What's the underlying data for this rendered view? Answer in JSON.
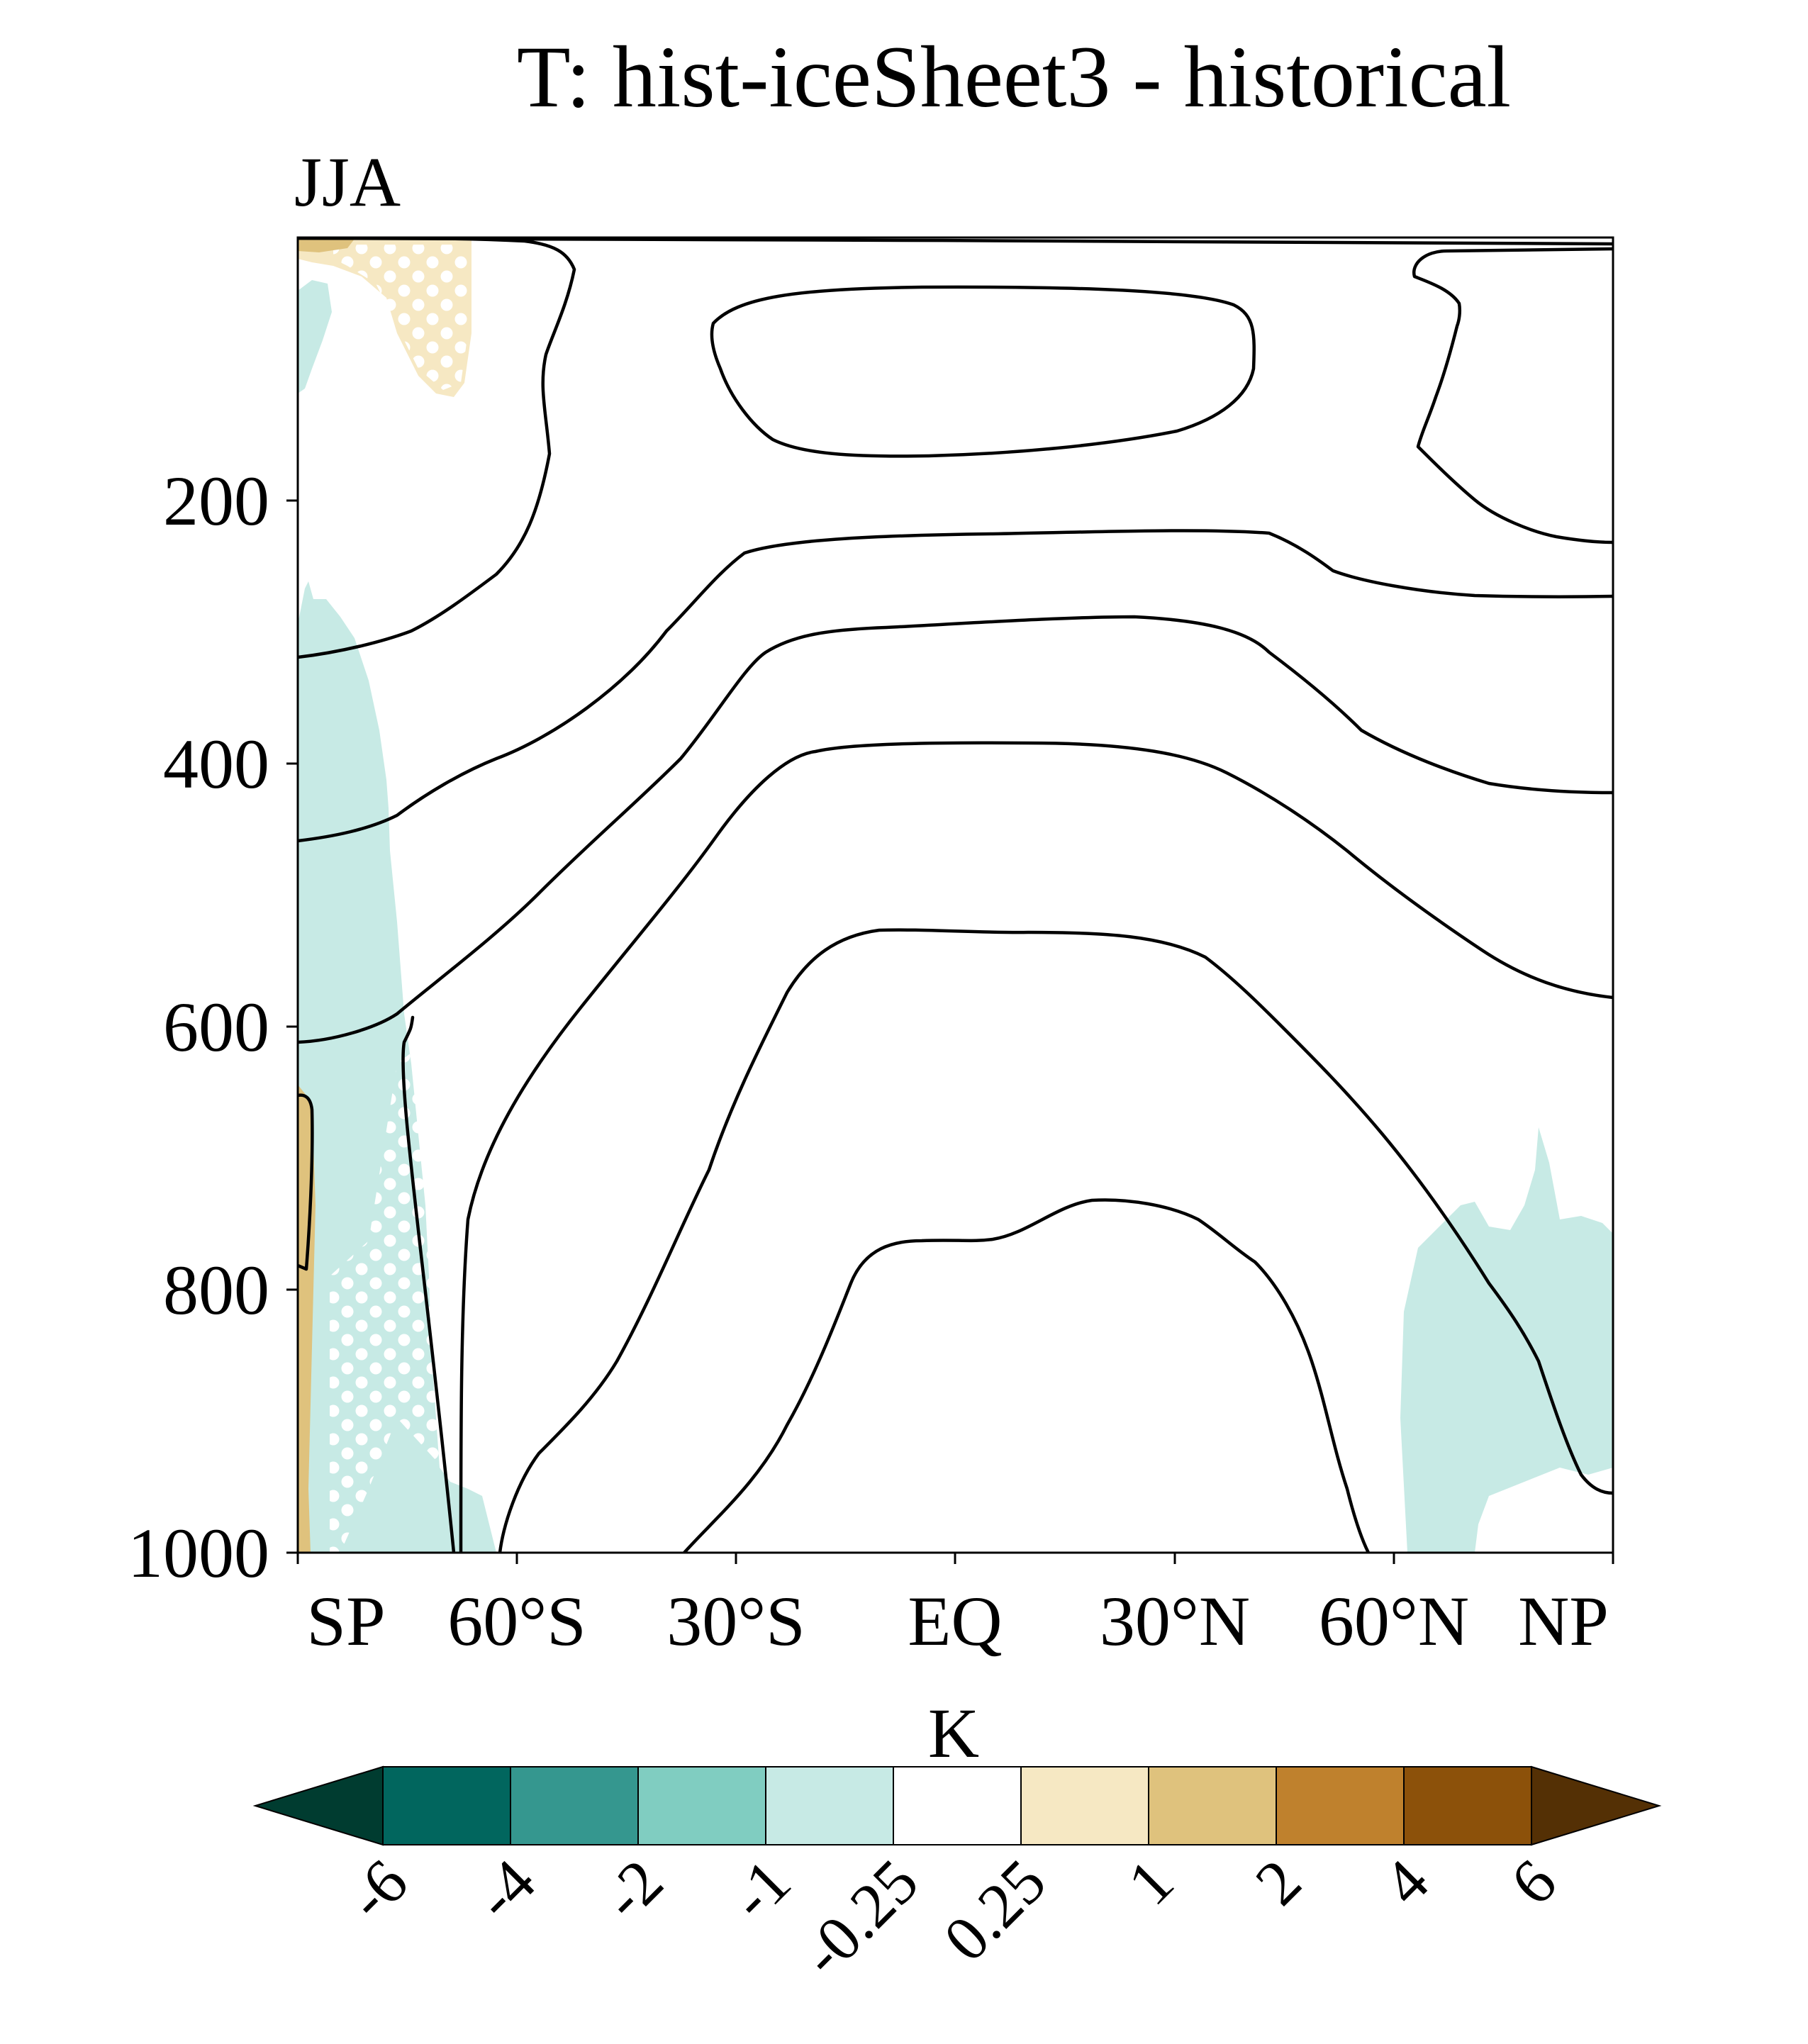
{
  "chart_data": {
    "type": "heatmap",
    "title": "T: hist-iceSheet3 - historical",
    "season": "JJA",
    "xlabel": "",
    "ylabel": "",
    "x_ticks": [
      "SP",
      "60°S",
      "30°S",
      "EQ",
      "30°N",
      "60°N",
      "NP"
    ],
    "x_tick_values": [
      -90,
      -60,
      -30,
      0,
      30,
      60,
      90
    ],
    "xlim": [
      -90,
      90
    ],
    "y_ticks": [
      "200",
      "400",
      "600",
      "800",
      "1000"
    ],
    "y_tick_values": [
      200,
      400,
      600,
      800,
      1000
    ],
    "ylim": [
      1000,
      0
    ],
    "y_inverted": true,
    "colorbar": {
      "label": "K",
      "levels": [
        "-6",
        "-4",
        "-2",
        "-1",
        "-0.25",
        "0.25",
        "1",
        "2",
        "4",
        "6"
      ],
      "colors": [
        "#003c30",
        "#01665e",
        "#35978f",
        "#80cdc1",
        "#c7eae5",
        "#ffffff",
        "#f6e8c3",
        "#dfc27d",
        "#bf812d",
        "#8c510a",
        "#543005"
      ],
      "extend": "both",
      "orientation": "horizontal"
    },
    "shaded_regions": [
      {
        "name": "south-pole-upper-cooling",
        "color": "#c7eae5",
        "category": "-1 to -0.25",
        "lat_range": [
          -90,
          -85
        ],
        "p_range": [
          30,
          120
        ],
        "stippled": false
      },
      {
        "name": "south-pole-column-cooling",
        "color": "#c7eae5",
        "category": "-1 to -0.25",
        "lat_range": [
          -90,
          -59
        ],
        "p_range": [
          260,
          1000
        ],
        "stippled": true
      },
      {
        "name": "south-pole-upper-warming",
        "color": "#f6e8c3",
        "category": "0.25 to 1",
        "lat_range": [
          -90,
          -66
        ],
        "p_range": [
          0,
          120
        ],
        "stippled": true
      },
      {
        "name": "south-pole-top-warming",
        "color": "#dfc27d",
        "category": "1 to 2",
        "lat_range": [
          -90,
          -82
        ],
        "p_range": [
          0,
          10
        ],
        "stippled": false
      },
      {
        "name": "south-pole-surface-warming",
        "color": "#dfc27d",
        "category": "1 to 2",
        "lat_range": [
          -90,
          -88
        ],
        "p_range": [
          630,
          1000
        ],
        "stippled": false
      },
      {
        "name": "arctic-lower-cooling",
        "color": "#c7eae5",
        "category": "-1 to -0.25",
        "lat_range": [
          60,
          90
        ],
        "p_range": [
          670,
          1000
        ],
        "stippled": false
      }
    ],
    "climatology_contours": [
      {
        "name": "contour-1",
        "approx_pressure_at_equator": 160,
        "note": "closed upper-tropospheric contour"
      },
      {
        "name": "contour-2",
        "approx_pressure_at_equator": 10
      },
      {
        "name": "contour-3",
        "approx_pressure_at_equator": 225
      },
      {
        "name": "contour-4",
        "approx_pressure_at_equator": 290
      },
      {
        "name": "contour-5",
        "approx_pressure_at_equator": 385
      },
      {
        "name": "contour-6",
        "approx_pressure_at_equator": 530
      },
      {
        "name": "contour-7",
        "approx_pressure_at_equator": 760
      },
      {
        "name": "contour-8",
        "approx_pressure_at_equator": 5
      }
    ]
  }
}
